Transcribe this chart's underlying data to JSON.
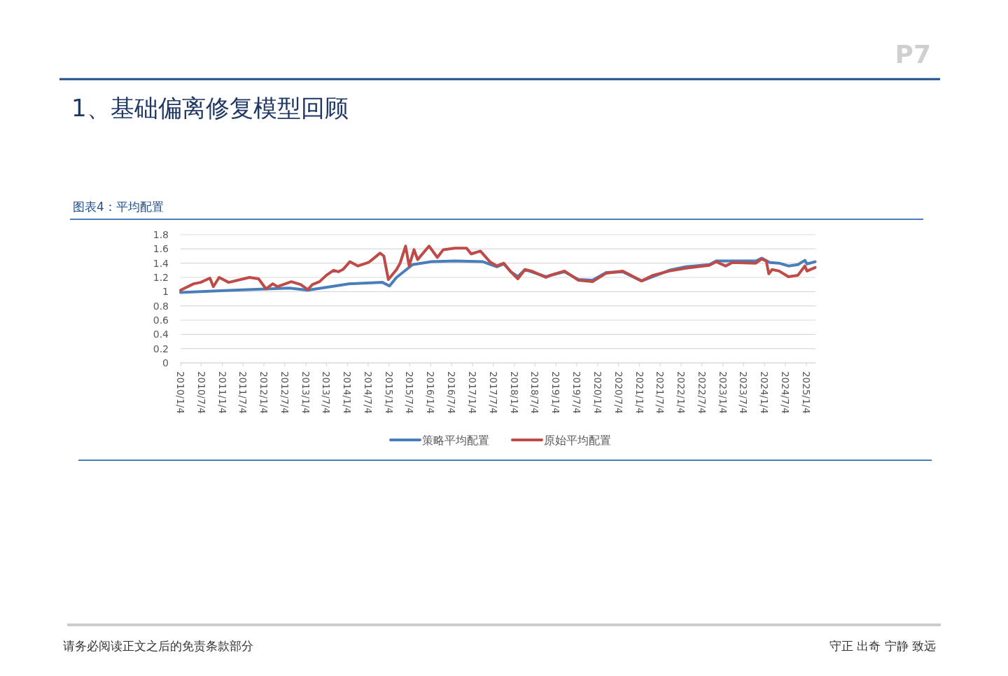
{
  "chart_data": {
    "type": "line",
    "title": "1、基础偏离修复模型回顾",
    "subtitle": "图表4：平均配置",
    "annotations": [
      "请务必阅读正文之后的免责条款部分",
      "守正 出奇 宁静 致远",
      "P7"
    ],
    "ylim": [
      0,
      1.8
    ],
    "yticks": [
      0,
      0.2,
      0.4,
      0.6,
      0.8,
      1,
      1.2,
      1.4,
      1.6,
      1.8
    ],
    "xlim": [
      "2010-01-04",
      "2025-03-25"
    ],
    "xticks": [
      {
        "value": "2010-01-04",
        "label": "2010/1/4"
      },
      {
        "value": "2010-07-04",
        "label": "2010/7/4"
      },
      {
        "value": "2011-01-04",
        "label": "2011/1/4"
      },
      {
        "value": "2011-07-04",
        "label": "2011/7/4"
      },
      {
        "value": "2012-01-04",
        "label": "2012/1/4"
      },
      {
        "value": "2012-07-04",
        "label": "2012/7/4"
      },
      {
        "value": "2013-01-04",
        "label": "2013/1/4"
      },
      {
        "value": "2013-07-04",
        "label": "2013/7/4"
      },
      {
        "value": "2014-01-04",
        "label": "2014/1/4"
      },
      {
        "value": "2014-07-04",
        "label": "2014/7/4"
      },
      {
        "value": "2015-01-04",
        "label": "2015/1/4"
      },
      {
        "value": "2015-07-04",
        "label": "2015/7/4"
      },
      {
        "value": "2016-01-04",
        "label": "2016/1/4"
      },
      {
        "value": "2016-07-04",
        "label": "2016/7/4"
      },
      {
        "value": "2017-01-04",
        "label": "2017/1/4"
      },
      {
        "value": "2017-07-04",
        "label": "2017/7/4"
      },
      {
        "value": "2018-01-04",
        "label": "2018/1/4"
      },
      {
        "value": "2018-07-04",
        "label": "2018/7/4"
      },
      {
        "value": "2019-01-04",
        "label": "2019/1/4"
      },
      {
        "value": "2019-07-04",
        "label": "2019/7/4"
      },
      {
        "value": "2020-01-04",
        "label": "2020/1/4"
      },
      {
        "value": "2020-07-04",
        "label": "2020/7/4"
      },
      {
        "value": "2021-01-04",
        "label": "2021/1/4"
      },
      {
        "value": "2021-07-04",
        "label": "2021/7/4"
      },
      {
        "value": "2022-01-04",
        "label": "2022/1/4"
      },
      {
        "value": "2022-07-04",
        "label": "2022/7/4"
      },
      {
        "value": "2023-01-04",
        "label": "2023/1/4"
      },
      {
        "value": "2023-07-04",
        "label": "2023/7/4"
      },
      {
        "value": "2024-01-04",
        "label": "2024/1/4"
      },
      {
        "value": "2024-07-04",
        "label": "2024/7/4"
      },
      {
        "value": "2025-01-04",
        "label": "2025/1/4"
      }
    ],
    "grid": "y",
    "legend": "bottom",
    "marker": "none",
    "line_style": "solid",
    "series": [
      {
        "name": "策略平均配置",
        "color": "#4a7ebb",
        "x": [
          "2010-01-04",
          "2011-04-10",
          "2012-08-13",
          "2013-01-21",
          "2014-01-25",
          "2014-11-07",
          "2015-01-07",
          "2015-03-10",
          "2015-05-28",
          "2015-07-28",
          "2016-01-10",
          "2016-08-01",
          "2017-04-04",
          "2017-08-04",
          "2017-10-04",
          "2017-12-04",
          "2018-02-04",
          "2018-04-07",
          "2018-10-07",
          "2019-03-19",
          "2019-07-19",
          "2019-11-19",
          "2020-03-19",
          "2020-08-10",
          "2021-01-22",
          "2021-09-22",
          "2022-02-16",
          "2022-09-07",
          "2022-11-07",
          "2023-03-28",
          "2023-10-19",
          "2023-12-10",
          "2024-02-19",
          "2024-05-10",
          "2024-07-31",
          "2024-10-22",
          "2024-12-22",
          "2025-01-10",
          "2025-03-22"
        ],
        "values": [
          0.99,
          1.02,
          1.05,
          1.02,
          1.11,
          1.13,
          1.08,
          1.2,
          1.3,
          1.38,
          1.42,
          1.43,
          1.42,
          1.35,
          1.39,
          1.28,
          1.21,
          1.31,
          1.21,
          1.28,
          1.17,
          1.16,
          1.27,
          1.28,
          1.15,
          1.3,
          1.35,
          1.38,
          1.43,
          1.43,
          1.43,
          1.47,
          1.41,
          1.4,
          1.36,
          1.38,
          1.44,
          1.39,
          1.42
        ]
      },
      {
        "name": "原始平均配置",
        "color": "#be4b48",
        "x": [
          "2010-01-04",
          "2010-04-28",
          "2010-06-28",
          "2010-09-18",
          "2010-10-18",
          "2010-12-07",
          "2011-03-01",
          "2011-08-30",
          "2011-11-18",
          "2012-01-21",
          "2012-03-21",
          "2012-05-01",
          "2012-08-30",
          "2012-11-20",
          "2013-01-21",
          "2013-03-04",
          "2013-05-04",
          "2013-07-04",
          "2013-09-04",
          "2013-10-16",
          "2013-11-25",
          "2014-01-25",
          "2014-04-06",
          "2014-07-07",
          "2014-08-16",
          "2014-10-16",
          "2014-11-18",
          "2014-12-28",
          "2015-03-10",
          "2015-04-10",
          "2015-05-28",
          "2015-06-28",
          "2015-08-10",
          "2015-09-10",
          "2015-12-19",
          "2016-03-01",
          "2016-04-22",
          "2016-08-01",
          "2016-11-12",
          "2016-12-22",
          "2017-03-13",
          "2017-06-04",
          "2017-08-04",
          "2017-10-04",
          "2017-12-04",
          "2018-02-04",
          "2018-04-07",
          "2018-06-04",
          "2018-10-07",
          "2018-11-16",
          "2019-03-19",
          "2019-07-19",
          "2019-11-19",
          "2020-03-19",
          "2020-08-10",
          "2021-01-22",
          "2021-05-04",
          "2021-09-22",
          "2022-02-16",
          "2022-09-07",
          "2022-11-07",
          "2023-01-28",
          "2023-03-28",
          "2023-10-19",
          "2023-12-10",
          "2024-01-19",
          "2024-02-10",
          "2024-03-10",
          "2024-05-10",
          "2024-07-31",
          "2024-10-22",
          "2024-12-22",
          "2025-01-10",
          "2025-03-22"
        ],
        "values": [
          1.02,
          1.11,
          1.13,
          1.19,
          1.07,
          1.2,
          1.13,
          1.2,
          1.18,
          1.04,
          1.11,
          1.07,
          1.14,
          1.1,
          1.03,
          1.1,
          1.14,
          1.23,
          1.3,
          1.28,
          1.31,
          1.42,
          1.36,
          1.41,
          1.46,
          1.54,
          1.5,
          1.17,
          1.31,
          1.4,
          1.64,
          1.36,
          1.59,
          1.45,
          1.64,
          1.48,
          1.59,
          1.61,
          1.61,
          1.53,
          1.57,
          1.42,
          1.36,
          1.4,
          1.28,
          1.18,
          1.31,
          1.29,
          1.2,
          1.23,
          1.29,
          1.16,
          1.14,
          1.26,
          1.29,
          1.15,
          1.23,
          1.29,
          1.33,
          1.37,
          1.42,
          1.36,
          1.41,
          1.4,
          1.46,
          1.43,
          1.25,
          1.31,
          1.29,
          1.21,
          1.23,
          1.36,
          1.29,
          1.34
        ]
      }
    ]
  }
}
